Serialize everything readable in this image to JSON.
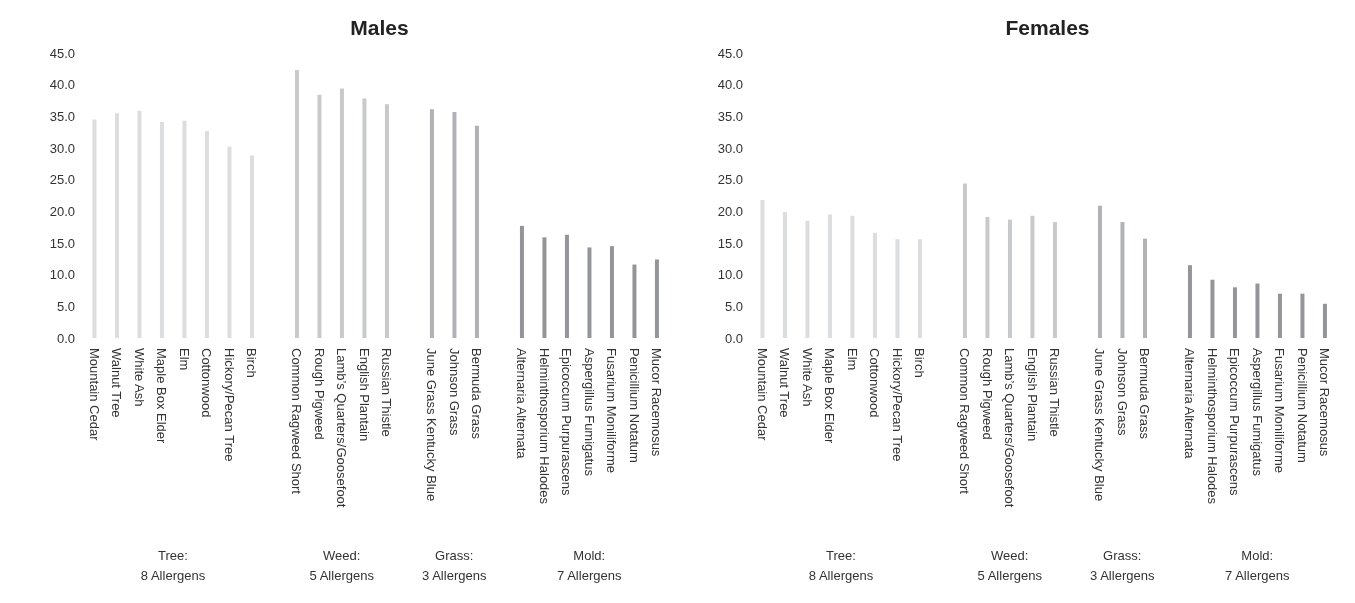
{
  "chart_data": [
    {
      "type": "bar",
      "title": "Males",
      "categories": [
        "Mountain Cedar",
        "Walnut Tree",
        "White Ash",
        "Maple Box Elder",
        "Elm",
        "Cottonwood",
        "Hickory/Pecan Tree",
        "Birch",
        null,
        "Common Ragweed Short",
        "Rough Pigweed",
        "Lamb’s Quarters/Goosefoot",
        "English Plantain",
        "Russian Thistle",
        null,
        "June Grass Kentucky Blue",
        "Johnson Grass",
        "Bermuda Grass",
        null,
        "Alternaria Alternata",
        "Helminthosporium Halodes",
        "Epicoccum Purpurascens",
        "Aspergillus Fumigatus",
        "Fusarium Moniliforme",
        "Penicillium Notatum",
        "Mucor Racemosus"
      ],
      "values": [
        34.5,
        35.5,
        35.9,
        34.1,
        34.3,
        32.7,
        30.2,
        28.8,
        null,
        42.3,
        38.4,
        39.4,
        37.8,
        36.9,
        null,
        36.1,
        35.7,
        33.5,
        null,
        17.7,
        15.9,
        16.3,
        14.3,
        14.5,
        11.6,
        12.4
      ],
      "colors": [
        "#dcdddf",
        "#dcdddf",
        "#dcdddf",
        "#dcdddf",
        "#dcdddf",
        "#dcdddf",
        "#dcdddf",
        "#dcdddf",
        null,
        "#c8c9cb",
        "#c8c9cb",
        "#c8c9cb",
        "#c8c9cb",
        "#c8c9cb",
        null,
        "#b1b2b5",
        "#b1b2b5",
        "#b1b2b5",
        null,
        "#939598",
        "#939598",
        "#939598",
        "#939598",
        "#939598",
        "#939598",
        "#939598"
      ],
      "ylim": [
        0,
        45
      ],
      "yticks": [
        {
          "value": 0,
          "label": "0.0"
        },
        {
          "value": 5,
          "label": "5.0"
        },
        {
          "value": 10,
          "label": "10.0"
        },
        {
          "value": 15,
          "label": "15.0"
        },
        {
          "value": 20,
          "label": "20.0"
        },
        {
          "value": 25,
          "label": "25.0"
        },
        {
          "value": 30,
          "label": "30.0"
        },
        {
          "value": 35,
          "label": "35.0"
        },
        {
          "value": 40,
          "label": "40.0"
        },
        {
          "value": 45,
          "label": "45.0"
        }
      ],
      "grid": false,
      "legend": false,
      "annotations": [
        "Tree:\n8 Allergens",
        "Weed:\n5 Allergens",
        "Grass:\n3 Allergens",
        "Mold:\n7 Allergens"
      ]
    },
    {
      "type": "bar",
      "title": "Females",
      "categories": [
        "Mountain Cedar",
        "Walnut Tree",
        "White Ash",
        "Maple Box Elder",
        "Elm",
        "Cottonwood",
        "Hickory/Pecan Tree",
        "Birch",
        null,
        "Common Ragweed Short",
        "Rough Pigweed",
        "Lamb’s Quarters/Goosefoot",
        "English Plantain",
        "Russian Thistle",
        null,
        "June Grass Kentucky Blue",
        "Johnson Grass",
        "Bermuda Grass",
        null,
        "Alternaria Alternata",
        "Helminthosporium Halodes",
        "Epicoccum Purpurascens",
        "Aspergillus Fumigatus",
        "Fusarium Moniliforme",
        "Penicillium Notatum",
        "Mucor Racemosus"
      ],
      "values": [
        21.8,
        19.9,
        18.5,
        19.5,
        19.3,
        16.6,
        15.6,
        15.6,
        null,
        24.4,
        19.1,
        18.7,
        19.3,
        18.3,
        null,
        20.9,
        18.3,
        15.7,
        null,
        11.5,
        9.2,
        8.0,
        8.6,
        7.0,
        7.0,
        5.4
      ],
      "colors": [
        "#dcdddf",
        "#dcdddf",
        "#dcdddf",
        "#dcdddf",
        "#dcdddf",
        "#dcdddf",
        "#dcdddf",
        "#dcdddf",
        null,
        "#c8c9cb",
        "#c8c9cb",
        "#c8c9cb",
        "#c8c9cb",
        "#c8c9cb",
        null,
        "#b1b2b5",
        "#b1b2b5",
        "#b1b2b5",
        null,
        "#939598",
        "#939598",
        "#939598",
        "#939598",
        "#939598",
        "#939598",
        "#939598"
      ],
      "ylim": [
        0,
        45
      ],
      "yticks": [
        {
          "value": 0,
          "label": "0.0"
        },
        {
          "value": 5,
          "label": "5.0"
        },
        {
          "value": 10,
          "label": "10.0"
        },
        {
          "value": 15,
          "label": "15.0"
        },
        {
          "value": 20,
          "label": "20.0"
        },
        {
          "value": 25,
          "label": "25.0"
        },
        {
          "value": 30,
          "label": "30.0"
        },
        {
          "value": 35,
          "label": "35.0"
        },
        {
          "value": 40,
          "label": "40.0"
        },
        {
          "value": 45,
          "label": "45.0"
        }
      ],
      "grid": false,
      "legend": false,
      "annotations": [
        "Tree:\n8 Allergens",
        "Weed:\n5 Allergens",
        "Grass:\n3 Allergens",
        "Mold:\n7 Allergens"
      ]
    }
  ]
}
